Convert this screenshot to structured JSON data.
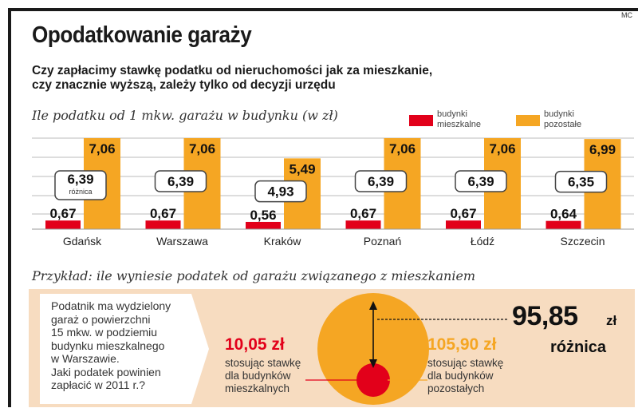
{
  "source": "MC",
  "title": "Opodatkowanie garaży",
  "subtitle_line1": "Czy zapłacimy stawkę podatku od nieruchomości jak za mieszkanie,",
  "subtitle_line2": "czy znacznie wyższą, zależy tylko od decyzji urzędu",
  "colors": {
    "residential": "#e2001a",
    "other": "#f5a623",
    "band": "#f7dcc0",
    "box_border": "#444444"
  },
  "chart_data": {
    "type": "bar",
    "title": "Ile podatku od 1 mkw. garażu w budynku (w zł)",
    "categories": [
      "Gdańsk",
      "Warszawa",
      "Kraków",
      "Poznań",
      "Łódź",
      "Szczecin"
    ],
    "series": [
      {
        "name": "budynki\nmieszkalne",
        "values": [
          0.67,
          0.67,
          0.56,
          0.67,
          0.67,
          0.64
        ],
        "labels": [
          "0,67",
          "0,67",
          "0,56",
          "0,67",
          "0,67",
          "0,64"
        ]
      },
      {
        "name": "budynki\npozostałe",
        "values": [
          7.06,
          7.06,
          5.49,
          7.06,
          7.06,
          6.99
        ],
        "labels": [
          "7,06",
          "7,06",
          "5,49",
          "7,06",
          "7,06",
          "6,99"
        ]
      }
    ],
    "differences": [
      6.39,
      6.39,
      4.93,
      6.39,
      6.39,
      6.35
    ],
    "difference_labels": [
      "6,39",
      "6,39",
      "4,93",
      "6,39",
      "6,39",
      "6,35"
    ],
    "difference_note": "różnica",
    "ylim": [
      0,
      7.06
    ],
    "grid": true
  },
  "example": {
    "heading": "Przykład: ile wyniesie podatek od garażu związanego z mieszkaniem",
    "question": "Podatnik ma wydzielony\ngaraż o powierzchni\n15 mkw. w podziemiu\nbudynku mieszkalnego\nw Warszawie.\nJaki podatek powinien\nzapłacić w 2011 r.?",
    "residential_value": "10,05 zł",
    "residential_caption": "stosując stawkę\ndla budynków\nmieszkalnych",
    "other_value": "105,90 zł",
    "other_caption": "stosując stawkę\ndla budynków\npozostałych",
    "difference_value": "95,85",
    "difference_unit": "zł",
    "difference_label": "różnica",
    "residential_amount": 10.05,
    "other_amount": 105.9
  }
}
